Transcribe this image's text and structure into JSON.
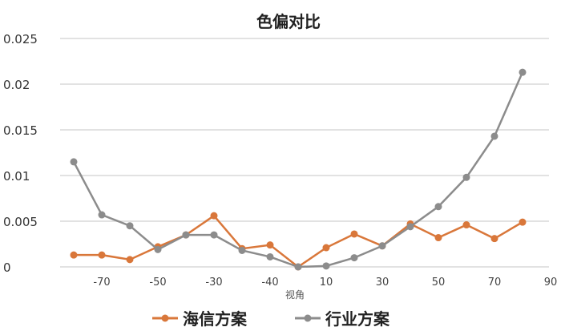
{
  "chart_data": {
    "type": "line",
    "title": "色偏对比",
    "xlabel": "视角",
    "ylabel": "",
    "x": [
      -80,
      -70,
      -60,
      -50,
      -40,
      -30,
      -20,
      -10,
      0,
      10,
      20,
      30,
      40,
      50,
      60,
      70,
      80
    ],
    "x_tick_labels": [
      "-70",
      "-50",
      "-30",
      "-40",
      "10",
      "30",
      "50",
      "70",
      "90"
    ],
    "y_ticks": [
      "0",
      "0.005",
      "0.01",
      "0.015",
      "0.02",
      "0.025"
    ],
    "ylim": [
      0,
      0.025
    ],
    "grid": true,
    "legend": "bottom",
    "series": [
      {
        "name": "海信方案",
        "color": "#d9773a",
        "values": [
          0.0013,
          0.0013,
          0.0008,
          0.0022,
          0.0035,
          0.0056,
          0.002,
          0.0024,
          0,
          0.0021,
          0.0036,
          0.0023,
          0.0047,
          0.0032,
          0.0046,
          0.0031,
          0.0049
        ]
      },
      {
        "name": "行业方案",
        "color": "#8c8c8c",
        "values": [
          0.0115,
          0.0057,
          0.0045,
          0.0019,
          0.0035,
          0.0035,
          0.0018,
          0.0011,
          0,
          0.0001,
          0.001,
          0.0023,
          0.0044,
          0.0066,
          0.0098,
          0.0143,
          0.0213
        ]
      }
    ]
  }
}
